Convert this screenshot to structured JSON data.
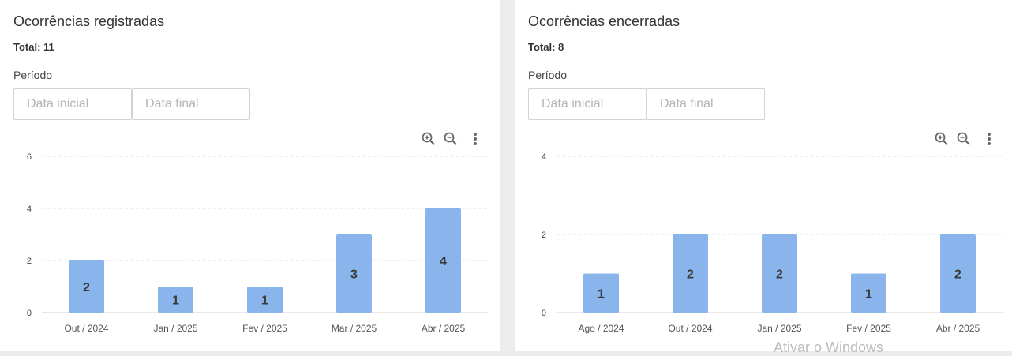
{
  "panels": [
    {
      "title": "Ocorrências registradas",
      "total": "Total: 11",
      "period_label": "Período",
      "start_placeholder": "Data inicial",
      "end_placeholder": "Data final",
      "chart_data": {
        "type": "bar",
        "categories": [
          "Out / 2024",
          "Jan / 2025",
          "Fev / 2025",
          "Mar / 2025",
          "Abr / 2025"
        ],
        "values": [
          2,
          1,
          1,
          3,
          4
        ],
        "yticks": [
          0,
          2,
          4,
          6
        ],
        "ylim": [
          0,
          6
        ],
        "grid": true,
        "bar_color": "#8ab4ec",
        "label_color": "#3a3a3a"
      }
    },
    {
      "title": "Ocorrências encerradas",
      "total": "Total: 8",
      "period_label": "Período",
      "start_placeholder": "Data inicial",
      "end_placeholder": "Data final",
      "chart_data": {
        "type": "bar",
        "categories": [
          "Ago / 2024",
          "Out / 2024",
          "Jan / 2025",
          "Fev / 2025",
          "Abr / 2025"
        ],
        "values": [
          1,
          2,
          2,
          1,
          2
        ],
        "yticks": [
          0,
          2,
          4
        ],
        "ylim": [
          0,
          4
        ],
        "grid": true,
        "bar_color": "#8ab4ec",
        "label_color": "#3a3a3a"
      }
    }
  ],
  "toolbar_icons": [
    "zoom-in-icon",
    "zoom-out-icon",
    "more-vert-icon"
  ],
  "watermark": "Ativar o Windows"
}
